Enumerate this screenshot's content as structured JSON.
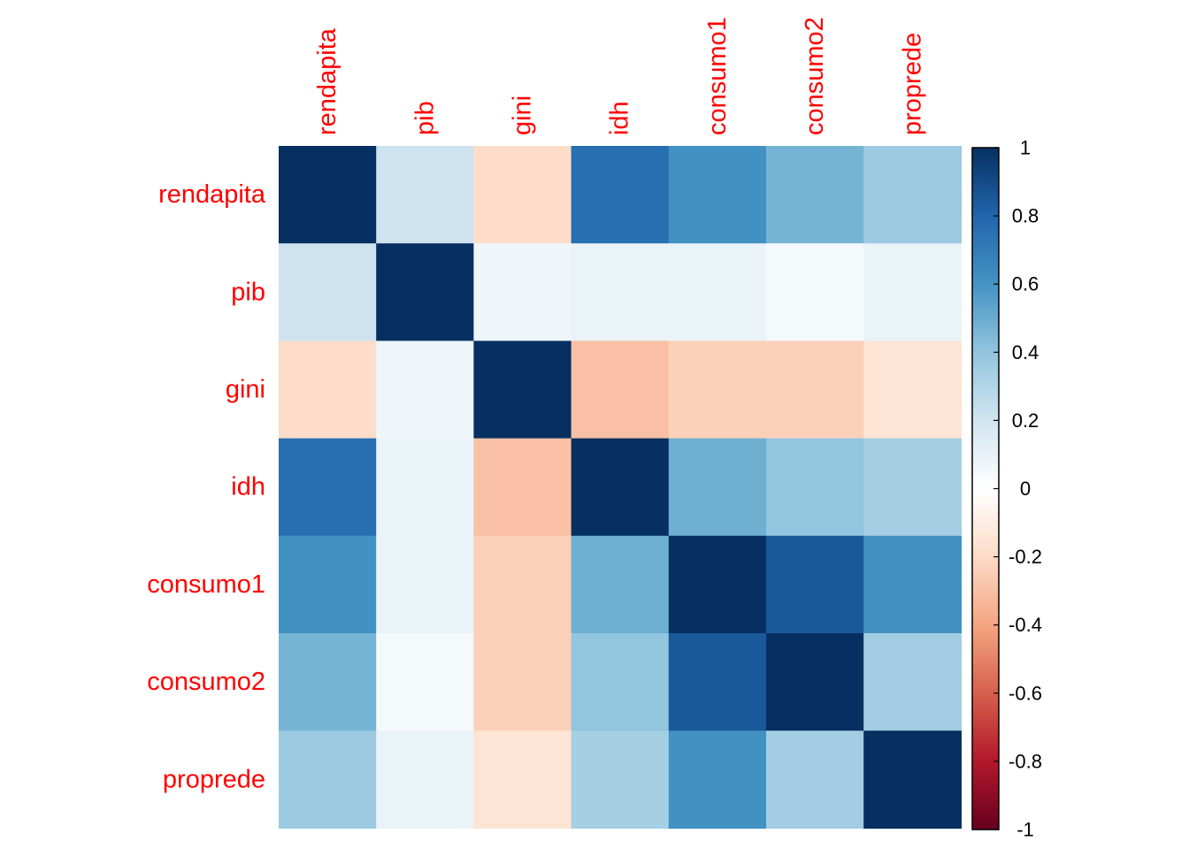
{
  "chart_data": {
    "type": "heatmap",
    "variables": [
      "rendapita",
      "pib",
      "gini",
      "idh",
      "consumo1",
      "consumo2",
      "proprede"
    ],
    "matrix": [
      [
        1.0,
        0.21,
        -0.19,
        0.76,
        0.61,
        0.47,
        0.37
      ],
      [
        0.21,
        1.0,
        0.07,
        0.09,
        0.09,
        0.05,
        0.09
      ],
      [
        -0.19,
        0.07,
        1.0,
        -0.3,
        -0.24,
        -0.24,
        -0.15
      ],
      [
        0.76,
        0.09,
        -0.3,
        1.0,
        0.49,
        0.4,
        0.34
      ],
      [
        0.61,
        0.09,
        -0.24,
        0.49,
        1.0,
        0.85,
        0.61
      ],
      [
        0.47,
        0.05,
        -0.24,
        0.4,
        0.85,
        1.0,
        0.35
      ],
      [
        0.37,
        0.09,
        -0.15,
        0.34,
        0.61,
        0.35,
        1.0
      ]
    ],
    "colorbar": {
      "range": [
        -1,
        1
      ],
      "ticks": [
        "1",
        "0.8",
        "0.6",
        "0.4",
        "0.2",
        "0",
        "-0.2",
        "-0.4",
        "-0.6",
        "-0.8",
        "-1"
      ],
      "tick_values": [
        1,
        0.8,
        0.6,
        0.4,
        0.2,
        0,
        -0.2,
        -0.4,
        -0.6,
        -0.8,
        -1
      ]
    },
    "colors": {
      "label": "#ff0000",
      "scale": [
        "#67001f",
        "#b2182b",
        "#d6604d",
        "#f4a582",
        "#fddbc7",
        "#ffffff",
        "#d1e5f0",
        "#92c5de",
        "#4393c3",
        "#2166ac",
        "#053061"
      ]
    },
    "title": "",
    "xlabel": "",
    "ylabel": ""
  }
}
